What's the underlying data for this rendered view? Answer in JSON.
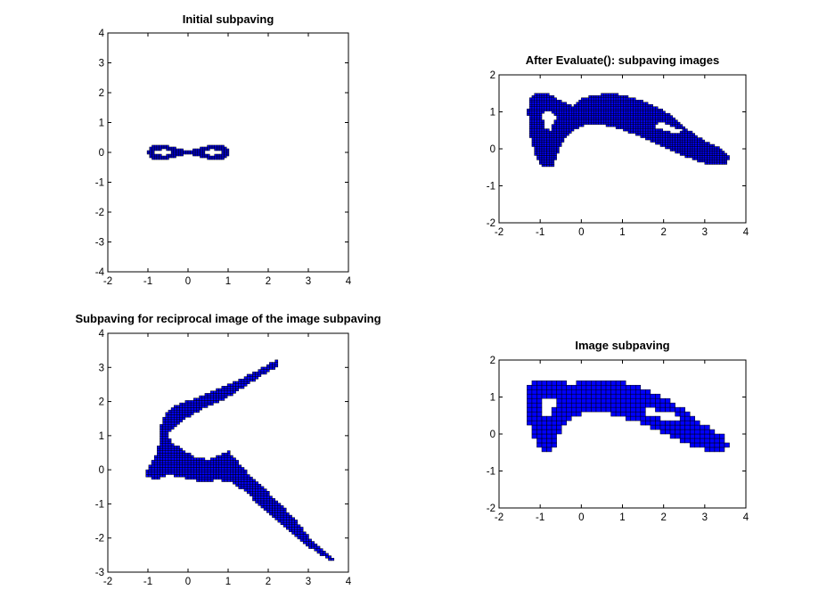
{
  "figure": {
    "background": "#ffffff",
    "axes_color": "#000000"
  },
  "chart_data": [
    {
      "type": "scatter",
      "title": "Initial subpaving",
      "xlabel": "",
      "ylabel": "",
      "xlim": [
        -2,
        4
      ],
      "ylim": [
        -4,
        4
      ],
      "xticks": [
        "-2",
        "-1",
        "0",
        "1",
        "2",
        "3",
        "4"
      ],
      "yticks": [
        "-4",
        "-3",
        "-2",
        "-1",
        "0",
        "1",
        "2",
        "3",
        "4"
      ],
      "grid": false,
      "fill_color": "#0000ff",
      "edge_color": "#000000",
      "box_size": 0.06,
      "shape": "figure-eight ring (lemniscate band) around y = 0",
      "series": [
        {
          "outline": [
            [
              -1.0,
              0.0
            ],
            [
              -0.95,
              0.17
            ],
            [
              -0.8,
              0.25
            ],
            [
              -0.6,
              0.25
            ],
            [
              -0.4,
              0.18
            ],
            [
              -0.2,
              0.1
            ],
            [
              0.0,
              0.08
            ],
            [
              0.2,
              0.1
            ],
            [
              0.4,
              0.18
            ],
            [
              0.6,
              0.25
            ],
            [
              0.8,
              0.25
            ],
            [
              0.95,
              0.17
            ],
            [
              1.05,
              0.0
            ],
            [
              0.95,
              -0.17
            ],
            [
              0.8,
              -0.25
            ],
            [
              0.6,
              -0.25
            ],
            [
              0.4,
              -0.18
            ],
            [
              0.2,
              -0.1
            ],
            [
              0.0,
              -0.08
            ],
            [
              -0.2,
              -0.1
            ],
            [
              -0.4,
              -0.18
            ],
            [
              -0.6,
              -0.25
            ],
            [
              -0.8,
              -0.25
            ],
            [
              -0.95,
              -0.17
            ]
          ],
          "holes": [
            [
              [
                -0.85,
                0.0
              ],
              [
                -0.75,
                0.08
              ],
              [
                -0.6,
                0.1
              ],
              [
                -0.45,
                0.06
              ],
              [
                -0.35,
                0.0
              ],
              [
                -0.45,
                -0.06
              ],
              [
                -0.6,
                -0.1
              ],
              [
                -0.75,
                -0.08
              ]
            ],
            [
              [
                0.35,
                0.0
              ],
              [
                0.45,
                0.06
              ],
              [
                0.6,
                0.1
              ],
              [
                0.75,
                0.08
              ],
              [
                0.88,
                0.0
              ],
              [
                0.75,
                -0.08
              ],
              [
                0.6,
                -0.1
              ],
              [
                0.45,
                -0.06
              ]
            ]
          ]
        }
      ]
    },
    {
      "type": "scatter",
      "title": "After Evaluate(): subpaving images",
      "xlabel": "",
      "ylabel": "",
      "xlim": [
        -2,
        4
      ],
      "ylim": [
        -2,
        2
      ],
      "xticks": [
        "-2",
        "-1",
        "0",
        "1",
        "2",
        "3",
        "4"
      ],
      "yticks": [
        "-2",
        "-1",
        "0",
        "1",
        "2"
      ],
      "grid": false,
      "fill_color": "#0000ff",
      "edge_color": "#000000",
      "box_size": 0.06,
      "shape": "crescent band, densely overlapped box images",
      "series": [
        {
          "outline": [
            [
              -1.3,
              1.0
            ],
            [
              -1.25,
              1.35
            ],
            [
              -1.1,
              1.5
            ],
            [
              -0.8,
              1.5
            ],
            [
              -0.5,
              1.3
            ],
            [
              -0.2,
              1.15
            ],
            [
              0.0,
              1.35
            ],
            [
              0.3,
              1.45
            ],
            [
              0.7,
              1.5
            ],
            [
              1.0,
              1.45
            ],
            [
              1.3,
              1.35
            ],
            [
              1.6,
              1.25
            ],
            [
              1.9,
              1.1
            ],
            [
              2.2,
              0.9
            ],
            [
              2.5,
              0.6
            ],
            [
              2.8,
              0.35
            ],
            [
              3.1,
              0.15
            ],
            [
              3.4,
              0.0
            ],
            [
              3.6,
              -0.2
            ],
            [
              3.5,
              -0.45
            ],
            [
              3.2,
              -0.45
            ],
            [
              2.9,
              -0.35
            ],
            [
              2.5,
              -0.2
            ],
            [
              2.1,
              0.0
            ],
            [
              1.7,
              0.2
            ],
            [
              1.3,
              0.4
            ],
            [
              0.9,
              0.55
            ],
            [
              0.5,
              0.65
            ],
            [
              0.1,
              0.65
            ],
            [
              -0.2,
              0.5
            ],
            [
              -0.45,
              0.2
            ],
            [
              -0.6,
              -0.2
            ],
            [
              -0.7,
              -0.5
            ],
            [
              -0.95,
              -0.5
            ],
            [
              -1.1,
              -0.2
            ],
            [
              -1.25,
              0.4
            ]
          ],
          "holes": [
            [
              [
                -0.95,
                0.95
              ],
              [
                -0.75,
                1.05
              ],
              [
                -0.6,
                0.85
              ],
              [
                -0.75,
                0.5
              ],
              [
                -0.9,
                0.55
              ]
            ],
            [
              [
                1.9,
                0.75
              ],
              [
                2.3,
                0.55
              ],
              [
                2.5,
                0.5
              ],
              [
                2.35,
                0.4
              ],
              [
                2.0,
                0.5
              ],
              [
                1.75,
                0.6
              ]
            ]
          ]
        }
      ]
    },
    {
      "type": "scatter",
      "title": "Subpaving for reciprocal image of the image subpaving",
      "xlabel": "",
      "ylabel": "",
      "xlim": [
        -2,
        4
      ],
      "ylim": [
        -3,
        4
      ],
      "xticks": [
        "-2",
        "-1",
        "0",
        "1",
        "2",
        "3",
        "4"
      ],
      "yticks": [
        "-3",
        "-2",
        "-1",
        "0",
        "1",
        "2",
        "3",
        "4"
      ],
      "grid": false,
      "fill_color": "#0000ff",
      "edge_color": "#000000",
      "box_size": 0.07,
      "shape": "two arms from a node near (-0.8, 0): one to (2.2, 3.2), one to (3.7, -2.8)",
      "series": [
        {
          "outline": [
            [
              -1.05,
              -0.2
            ],
            [
              -1.0,
              0.05
            ],
            [
              -0.85,
              0.3
            ],
            [
              -0.75,
              0.6
            ],
            [
              -0.7,
              1.0
            ],
            [
              -0.65,
              1.45
            ],
            [
              -0.5,
              1.75
            ],
            [
              -0.2,
              1.95
            ],
            [
              0.2,
              2.1
            ],
            [
              0.6,
              2.3
            ],
            [
              1.0,
              2.5
            ],
            [
              1.4,
              2.7
            ],
            [
              1.8,
              2.95
            ],
            [
              2.1,
              3.15
            ],
            [
              2.25,
              3.2
            ],
            [
              2.25,
              3.05
            ],
            [
              1.9,
              2.8
            ],
            [
              1.5,
              2.5
            ],
            [
              1.1,
              2.2
            ],
            [
              0.7,
              1.95
            ],
            [
              0.3,
              1.75
            ],
            [
              0.0,
              1.55
            ],
            [
              -0.25,
              1.35
            ],
            [
              -0.5,
              1.05
            ],
            [
              -0.4,
              0.8
            ],
            [
              -0.1,
              0.55
            ],
            [
              0.2,
              0.35
            ],
            [
              0.5,
              0.3
            ],
            [
              0.8,
              0.45
            ],
            [
              1.0,
              0.55
            ],
            [
              1.2,
              0.3
            ],
            [
              1.5,
              -0.1
            ],
            [
              1.9,
              -0.55
            ],
            [
              2.3,
              -1.0
            ],
            [
              2.7,
              -1.5
            ],
            [
              3.0,
              -1.95
            ],
            [
              3.3,
              -2.3
            ],
            [
              3.6,
              -2.6
            ],
            [
              3.75,
              -2.8
            ],
            [
              3.7,
              -2.75
            ],
            [
              3.4,
              -2.55
            ],
            [
              3.0,
              -2.25
            ],
            [
              2.6,
              -1.9
            ],
            [
              2.2,
              -1.5
            ],
            [
              1.8,
              -1.05
            ],
            [
              1.4,
              -0.6
            ],
            [
              1.05,
              -0.35
            ],
            [
              0.7,
              -0.3
            ],
            [
              0.4,
              -0.35
            ],
            [
              0.1,
              -0.3
            ],
            [
              -0.2,
              -0.2
            ],
            [
              -0.5,
              -0.15
            ],
            [
              -0.8,
              -0.3
            ]
          ],
          "holes": []
        }
      ]
    },
    {
      "type": "scatter",
      "title": "Image subpaving",
      "xlabel": "",
      "ylabel": "",
      "xlim": [
        -2,
        4
      ],
      "ylim": [
        -2,
        2
      ],
      "xticks": [
        "-2",
        "-1",
        "0",
        "1",
        "2",
        "3",
        "4"
      ],
      "yticks": [
        "-2",
        "-1",
        "0",
        "1",
        "2"
      ],
      "grid": false,
      "fill_color": "#0000ff",
      "edge_color": "#000000",
      "box_size": 0.12,
      "shape": "crescent band covered by a regular grid of boxes",
      "series": [
        {
          "outline": [
            [
              -1.3,
              1.0
            ],
            [
              -1.25,
              1.4
            ],
            [
              -1.0,
              1.5
            ],
            [
              -0.6,
              1.5
            ],
            [
              -0.3,
              1.35
            ],
            [
              0.0,
              1.4
            ],
            [
              0.4,
              1.45
            ],
            [
              0.8,
              1.45
            ],
            [
              1.2,
              1.35
            ],
            [
              1.6,
              1.2
            ],
            [
              2.0,
              1.0
            ],
            [
              2.3,
              0.8
            ],
            [
              2.6,
              0.55
            ],
            [
              2.9,
              0.3
            ],
            [
              3.2,
              0.1
            ],
            [
              3.5,
              -0.1
            ],
            [
              3.6,
              -0.3
            ],
            [
              3.5,
              -0.5
            ],
            [
              3.2,
              -0.5
            ],
            [
              2.9,
              -0.4
            ],
            [
              2.5,
              -0.25
            ],
            [
              2.1,
              -0.05
            ],
            [
              1.7,
              0.15
            ],
            [
              1.3,
              0.35
            ],
            [
              0.9,
              0.5
            ],
            [
              0.5,
              0.6
            ],
            [
              0.1,
              0.6
            ],
            [
              -0.2,
              0.45
            ],
            [
              -0.45,
              0.15
            ],
            [
              -0.6,
              -0.2
            ],
            [
              -0.7,
              -0.5
            ],
            [
              -0.95,
              -0.5
            ],
            [
              -1.1,
              -0.2
            ],
            [
              -1.3,
              0.3
            ]
          ],
          "holes": [
            [
              [
                -0.9,
                0.95
              ],
              [
                -0.7,
                1.0
              ],
              [
                -0.6,
                0.85
              ],
              [
                -0.75,
                0.45
              ],
              [
                -0.9,
                0.5
              ]
            ],
            [
              [
                1.6,
                0.75
              ],
              [
                2.0,
                0.6
              ],
              [
                2.4,
                0.5
              ],
              [
                2.5,
                0.35
              ],
              [
                2.2,
                0.35
              ],
              [
                1.8,
                0.45
              ],
              [
                1.5,
                0.6
              ]
            ]
          ]
        }
      ]
    }
  ]
}
